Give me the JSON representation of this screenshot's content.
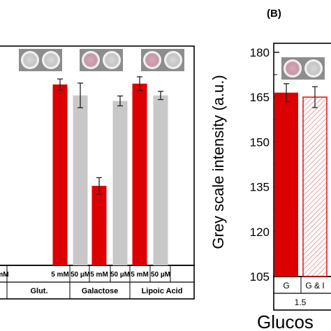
{
  "panel_b_label": "(B)",
  "colors": {
    "red": "#dd0000",
    "gray": "#c8c8c8",
    "errorbar": "#222222",
    "hatch": "#e06a6a",
    "well_pink": "#d7a8b6",
    "well_gray": "#cfcfcf",
    "plate": "#8d8d8d"
  },
  "chart_data": [
    {
      "type": "bar",
      "panel": "A",
      "title": "",
      "xlabel": "",
      "ylabel": "",
      "ylim": [
        105,
        185
      ],
      "sub_categories": [
        "mM",
        "5 mM",
        "50 µM",
        "5 mM",
        "50 µM",
        "5 mM",
        "50 µM"
      ],
      "groups": [
        "Glut.",
        "Galactose",
        "Lipoic Acid"
      ],
      "bars": [
        {
          "group": "Glut.",
          "sub": "5 mM",
          "value": 171.0,
          "error": 2.0,
          "color": "red"
        },
        {
          "group": "Glut.",
          "sub": "50 µM",
          "value": 167.0,
          "error": 4.5,
          "color": "gray"
        },
        {
          "group": "Galactose",
          "sub": "5 mM",
          "value": 134.0,
          "error": 3.0,
          "color": "red"
        },
        {
          "group": "Galactose",
          "sub": "50 µM",
          "value": 165.0,
          "error": 1.8,
          "color": "gray"
        },
        {
          "group": "Lipoic Acid",
          "sub": "5 mM",
          "value": 171.3,
          "error": 2.5,
          "color": "red"
        },
        {
          "group": "Lipoic Acid",
          "sub": "50 µM",
          "value": 167.0,
          "error": 1.5,
          "color": "gray"
        }
      ],
      "well_images": [
        {
          "group": "Glut.",
          "wells": [
            "gray",
            "gray"
          ]
        },
        {
          "group": "Galactose",
          "wells": [
            "pink",
            "gray"
          ]
        },
        {
          "group": "Lipoic Acid",
          "wells": [
            "pink",
            "gray"
          ]
        }
      ]
    },
    {
      "type": "bar",
      "panel": "B",
      "title": "",
      "xlabel": "Glucos",
      "ylabel": "Grey scale intensity (a.u.)",
      "ylim": [
        105,
        183
      ],
      "yticks": [
        105,
        120,
        135,
        150,
        165,
        180
      ],
      "sub_categories": [
        "G",
        "G & I"
      ],
      "group_label": "1.5",
      "bars": [
        {
          "sub": "G",
          "value": 166.5,
          "error": 3.0,
          "color": "red",
          "hatched": false
        },
        {
          "sub": "G & I",
          "value": 165.0,
          "error": 3.5,
          "color": "red",
          "hatched": true
        }
      ],
      "well_images": [
        {
          "wells": [
            "pink",
            "gray"
          ]
        }
      ]
    }
  ]
}
